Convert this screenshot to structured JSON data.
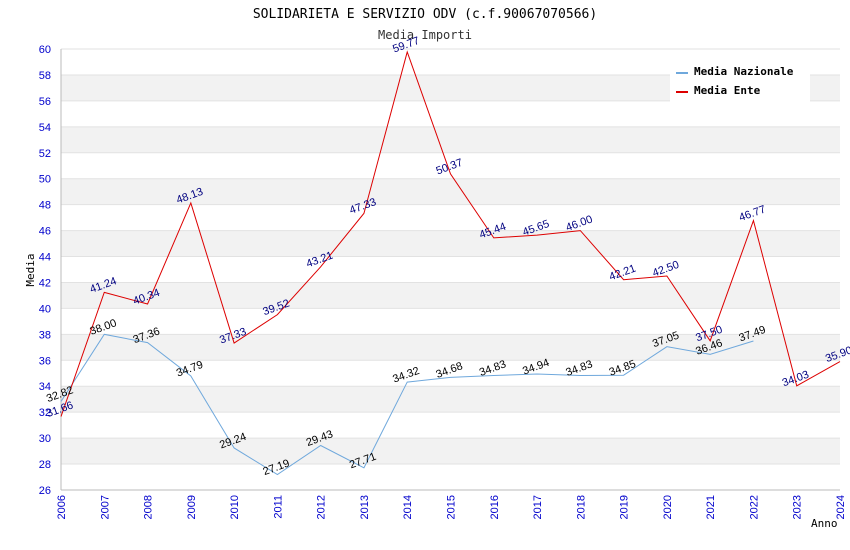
{
  "chart_data": {
    "type": "line",
    "title": "SOLIDARIETA E SERVIZIO ODV (c.f.90067070566)",
    "subtitle": "Media Importi",
    "xlabel": "Anno",
    "ylabel": "Media",
    "ylim": [
      26,
      60
    ],
    "y_ticks": [
      26,
      28,
      30,
      32,
      34,
      36,
      38,
      40,
      42,
      44,
      46,
      48,
      50,
      52,
      54,
      56,
      58,
      60
    ],
    "x": [
      2006,
      2007,
      2008,
      2009,
      2010,
      2011,
      2012,
      2013,
      2014,
      2015,
      2016,
      2017,
      2018,
      2019,
      2020,
      2021,
      2022,
      2023,
      2024
    ],
    "grid": "horizontal bands",
    "legend_position": "top-right",
    "series": [
      {
        "name": "Media Nazionale",
        "color": "#6fa8dc",
        "label_color": "#000000",
        "values": [
          32.82,
          38.0,
          37.36,
          34.79,
          29.24,
          27.19,
          29.43,
          27.71,
          34.32,
          34.68,
          34.83,
          34.94,
          34.83,
          34.85,
          37.05,
          36.46,
          37.49,
          null,
          null
        ],
        "labels": [
          "32.82",
          "38.00",
          "37.36",
          "34.79",
          "29.24",
          "27.19",
          "29.43",
          "27.71",
          "34.32",
          "34.68",
          "34.83",
          "34.94",
          "34.83",
          "34.85",
          "37.05",
          "36.46",
          "37.49",
          null,
          null
        ]
      },
      {
        "name": "Media Ente",
        "color": "#dd0000",
        "label_color": "#000080",
        "values": [
          31.66,
          41.24,
          40.34,
          48.13,
          37.33,
          39.52,
          43.21,
          47.33,
          59.77,
          50.37,
          45.44,
          45.65,
          46.0,
          42.21,
          42.5,
          37.5,
          46.77,
          34.03,
          35.9
        ],
        "labels": [
          "31.66",
          "41.24",
          "40.34",
          "48.13",
          "37.33",
          "39.52",
          "43.21",
          "47.33",
          "59.77",
          "50.37",
          "45.44",
          "45.65",
          "46.00",
          "42.21",
          "42.50",
          "37.50",
          "46.77",
          "34.03",
          "35.90"
        ]
      }
    ]
  }
}
